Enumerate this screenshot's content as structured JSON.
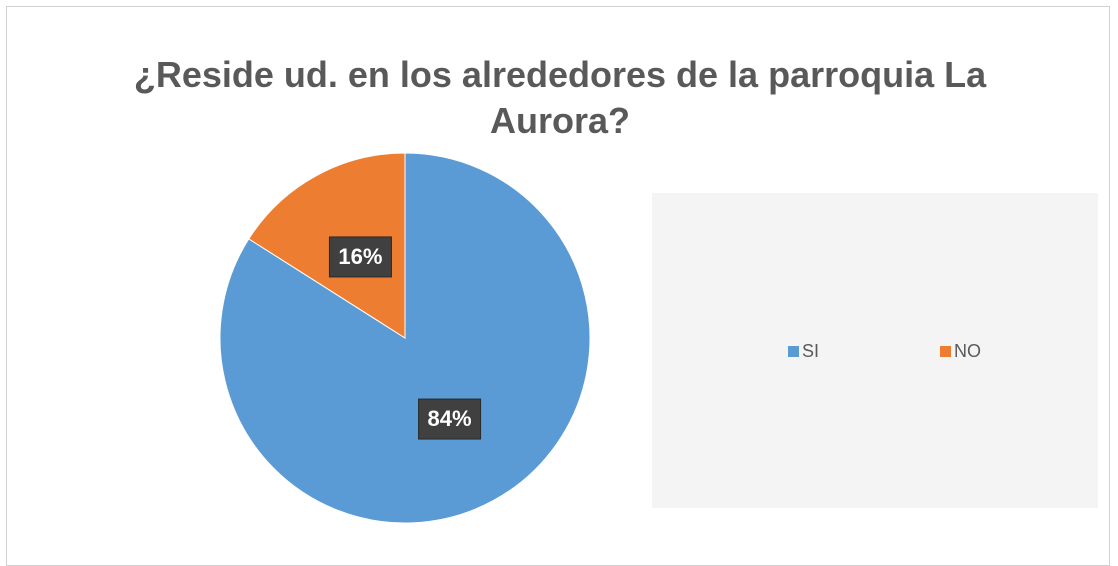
{
  "chart_data": {
    "type": "pie",
    "title": "¿Reside ud. en los alrededores de la parroquia La Aurora?",
    "categories": [
      "SI",
      "NO"
    ],
    "values": [
      84,
      16
    ],
    "value_labels": [
      "84%",
      "16%"
    ],
    "colors": [
      "#5b9bd5",
      "#ed7d31"
    ],
    "legend": "right"
  }
}
